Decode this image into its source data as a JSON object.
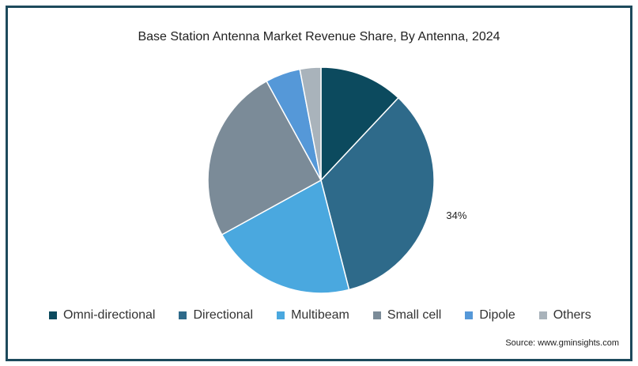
{
  "chart_data": {
    "type": "pie",
    "title": "Base Station Antenna Market Revenue Share, By Antenna, 2024",
    "start_angle_deg": 0,
    "slices": [
      {
        "label": "Omni-directional",
        "value": 12,
        "color": "#0c4a5e",
        "data_label": ""
      },
      {
        "label": "Directional",
        "value": 34,
        "color": "#2e6a8a",
        "data_label": "34%"
      },
      {
        "label": "Multibeam",
        "value": 21,
        "color": "#4aa8df",
        "data_label": ""
      },
      {
        "label": "Small cell",
        "value": 25,
        "color": "#7b8b98",
        "data_label": ""
      },
      {
        "label": "Dipole",
        "value": 5,
        "color": "#5598d8",
        "data_label": ""
      },
      {
        "label": "Others",
        "value": 3,
        "color": "#a9b3bb",
        "data_label": ""
      }
    ],
    "legend_placement": "bottom"
  },
  "source": "Source: www.gminsights.com"
}
